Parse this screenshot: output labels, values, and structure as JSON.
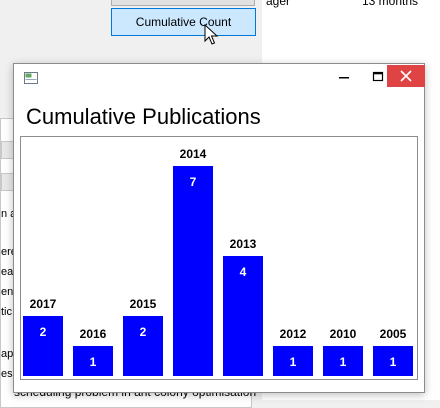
{
  "background": {
    "cumulative_button_label": "Cumulative Count",
    "right_panel_text_1": "ager",
    "right_panel_text_2": "13 months",
    "left_fragments": [
      "n a",
      "ere",
      "ear",
      "ent",
      "tic",
      "apt",
      "ese"
    ],
    "bottom_text": "scheduling problem in ant colony optimisation"
  },
  "window": {
    "close_symbol": "✕",
    "minimize_symbol": "‒",
    "maximize_symbol": "☐"
  },
  "chart_data": {
    "type": "bar",
    "title": "Cumulative Publications",
    "xlabel": "",
    "ylabel": "",
    "categories": [
      "2017",
      "2016",
      "2015",
      "2014",
      "2013",
      "2012",
      "2010",
      "2005"
    ],
    "values": [
      2,
      1,
      2,
      7,
      4,
      1,
      1,
      1
    ],
    "ylim": [
      0,
      7
    ],
    "bar_color": "#0000ff",
    "grid": false,
    "legend": "none"
  }
}
